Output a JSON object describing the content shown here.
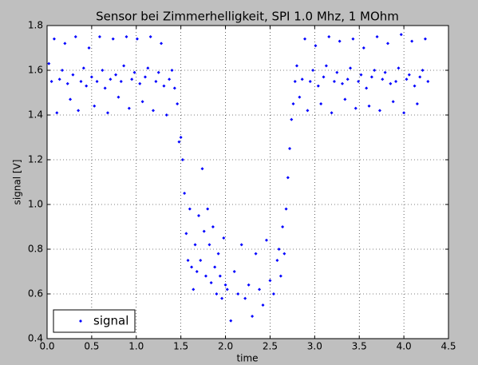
{
  "chart_data": {
    "type": "scatter",
    "title": "Sensor bei Zimmerhelligkeit, SPI 1.0 Mhz, 1 MOhm",
    "x_label": "time",
    "y_label": "signal [V]",
    "x": [
      0.02,
      0.05,
      0.08,
      0.11,
      0.14,
      0.17,
      0.2,
      0.23,
      0.26,
      0.29,
      0.32,
      0.35,
      0.38,
      0.41,
      0.44,
      0.47,
      0.5,
      0.53,
      0.56,
      0.59,
      0.62,
      0.65,
      0.68,
      0.71,
      0.74,
      0.77,
      0.8,
      0.83,
      0.86,
      0.89,
      0.92,
      0.95,
      0.98,
      1.01,
      1.04,
      1.07,
      1.1,
      1.13,
      1.16,
      1.19,
      1.22,
      1.25,
      1.28,
      1.31,
      1.34,
      1.37,
      1.4,
      1.43,
      1.46,
      1.48,
      1.5,
      1.52,
      1.54,
      1.56,
      1.58,
      1.6,
      1.62,
      1.64,
      1.66,
      1.68,
      1.7,
      1.72,
      1.74,
      1.76,
      1.78,
      1.8,
      1.82,
      1.84,
      1.86,
      1.88,
      1.9,
      1.92,
      1.94,
      1.96,
      1.98,
      2.0,
      2.02,
      2.06,
      2.1,
      2.14,
      2.18,
      2.22,
      2.26,
      2.3,
      2.34,
      2.38,
      2.42,
      2.46,
      2.5,
      2.54,
      2.58,
      2.6,
      2.62,
      2.64,
      2.66,
      2.68,
      2.7,
      2.72,
      2.74,
      2.76,
      2.78,
      2.8,
      2.83,
      2.86,
      2.89,
      2.92,
      2.95,
      2.98,
      3.01,
      3.04,
      3.07,
      3.1,
      3.13,
      3.16,
      3.19,
      3.22,
      3.25,
      3.28,
      3.31,
      3.34,
      3.37,
      3.4,
      3.43,
      3.46,
      3.49,
      3.52,
      3.55,
      3.58,
      3.61,
      3.64,
      3.67,
      3.7,
      3.73,
      3.76,
      3.79,
      3.82,
      3.85,
      3.88,
      3.91,
      3.94,
      3.97,
      4.0,
      4.03,
      4.06,
      4.09,
      4.12,
      4.15,
      4.18,
      4.21,
      4.24,
      4.27
    ],
    "series": [
      {
        "name": "signal",
        "color": "#0000ff",
        "values": [
          1.63,
          1.55,
          1.74,
          1.41,
          1.56,
          1.6,
          1.72,
          1.54,
          1.47,
          1.58,
          1.75,
          1.42,
          1.55,
          1.61,
          1.53,
          1.7,
          1.57,
          1.44,
          1.55,
          1.75,
          1.6,
          1.52,
          1.41,
          1.56,
          1.74,
          1.58,
          1.48,
          1.55,
          1.62,
          1.75,
          1.43,
          1.56,
          1.59,
          1.74,
          1.54,
          1.46,
          1.57,
          1.61,
          1.75,
          1.42,
          1.55,
          1.59,
          1.72,
          1.53,
          1.4,
          1.56,
          1.6,
          1.52,
          1.45,
          1.28,
          1.3,
          1.2,
          1.05,
          0.87,
          0.75,
          0.98,
          0.72,
          0.62,
          0.82,
          0.7,
          0.95,
          0.75,
          1.16,
          0.88,
          0.68,
          0.98,
          0.82,
          0.65,
          0.9,
          0.72,
          0.6,
          0.78,
          0.68,
          0.58,
          0.85,
          0.64,
          0.62,
          0.48,
          0.7,
          0.6,
          0.82,
          0.58,
          0.64,
          0.5,
          0.78,
          0.62,
          0.55,
          0.84,
          0.66,
          0.6,
          0.75,
          0.8,
          0.68,
          0.9,
          0.78,
          0.98,
          1.12,
          1.25,
          1.38,
          1.45,
          1.55,
          1.62,
          1.48,
          1.56,
          1.74,
          1.42,
          1.55,
          1.6,
          1.71,
          1.53,
          1.45,
          1.57,
          1.62,
          1.75,
          1.41,
          1.55,
          1.59,
          1.73,
          1.54,
          1.47,
          1.56,
          1.61,
          1.74,
          1.43,
          1.55,
          1.58,
          1.7,
          1.52,
          1.44,
          1.57,
          1.6,
          1.75,
          1.42,
          1.56,
          1.59,
          1.72,
          1.54,
          1.46,
          1.55,
          1.61,
          1.76,
          1.41,
          1.56,
          1.58,
          1.73,
          1.53,
          1.45,
          1.57,
          1.6,
          1.74,
          1.55
        ]
      }
    ],
    "xlim": [
      0,
      4.5
    ],
    "xticks": [
      {
        "value": 0,
        "label": "0.0"
      },
      0.5,
      {
        "value": 1,
        "label": "1.0"
      },
      1.5,
      {
        "value": 2,
        "label": "2.0"
      },
      2.5,
      {
        "value": 3,
        "label": "3.0"
      },
      3.5,
      {
        "value": 4,
        "label": "4.0"
      },
      4.5
    ],
    "ylim": [
      0.4,
      1.8
    ],
    "yticks": [
      0.4,
      0.6,
      0.8,
      {
        "value": 1,
        "label": "1.0"
      },
      1.2,
      1.4,
      1.6,
      1.8
    ],
    "grid": true,
    "legend": "lower-left"
  }
}
